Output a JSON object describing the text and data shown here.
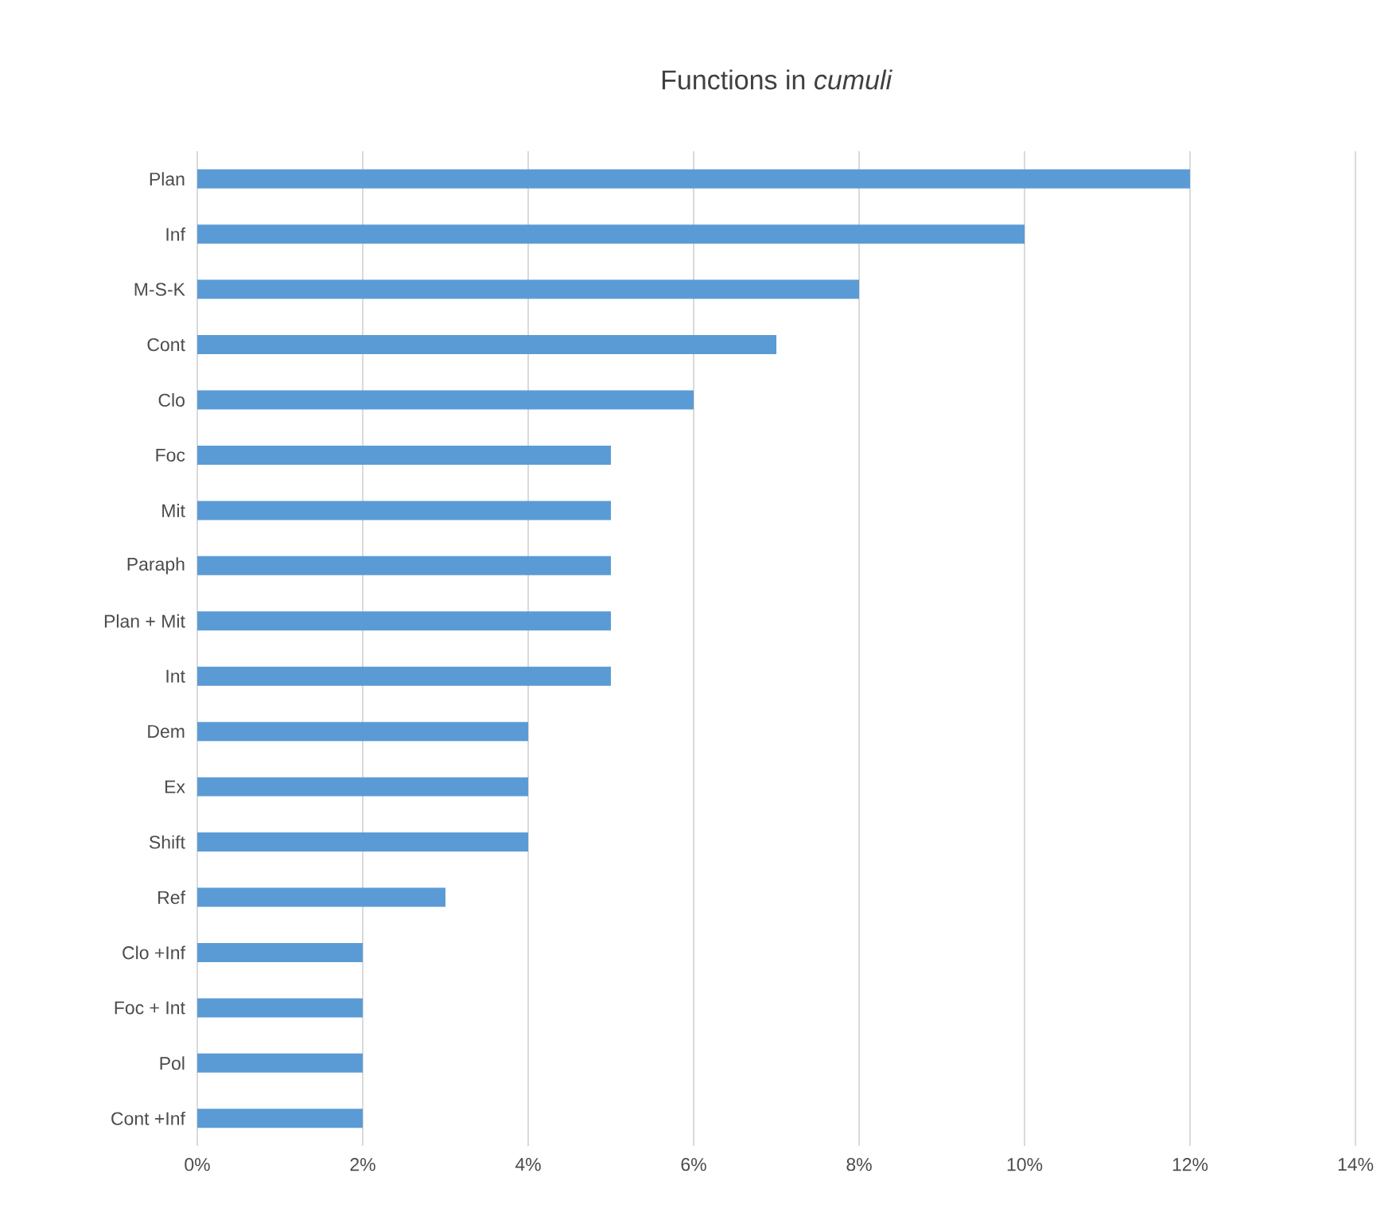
{
  "chart_data": {
    "type": "bar",
    "orientation": "horizontal",
    "title": "Functions in *cumuli*",
    "categories": [
      "Plan",
      "Inf",
      "M-S-K",
      "Cont",
      "Clo",
      "Foc",
      "Mit",
      "Paraph",
      "Plan + Mit",
      "Int",
      "Dem",
      "Ex",
      "Shift",
      "Ref",
      "Clo +Inf",
      "Foc + Int",
      "Pol",
      "Cont +Inf"
    ],
    "values": [
      12,
      10,
      8,
      7,
      6,
      5,
      5,
      5,
      5,
      5,
      4,
      4,
      4,
      3,
      2,
      2,
      2,
      2
    ],
    "color": "#5b9bd5",
    "xlim": [
      0,
      14
    ],
    "xticks": [
      {
        "value": 0,
        "label": "0%"
      },
      {
        "value": 2,
        "label": "2%"
      },
      {
        "value": 4,
        "label": "4%"
      },
      {
        "value": 6,
        "label": "6%"
      },
      {
        "value": 8,
        "label": "8%"
      },
      {
        "value": 10,
        "label": "10%"
      },
      {
        "value": 12,
        "label": "12%"
      },
      {
        "value": 14,
        "label": "14%"
      }
    ],
    "grid": "x"
  }
}
